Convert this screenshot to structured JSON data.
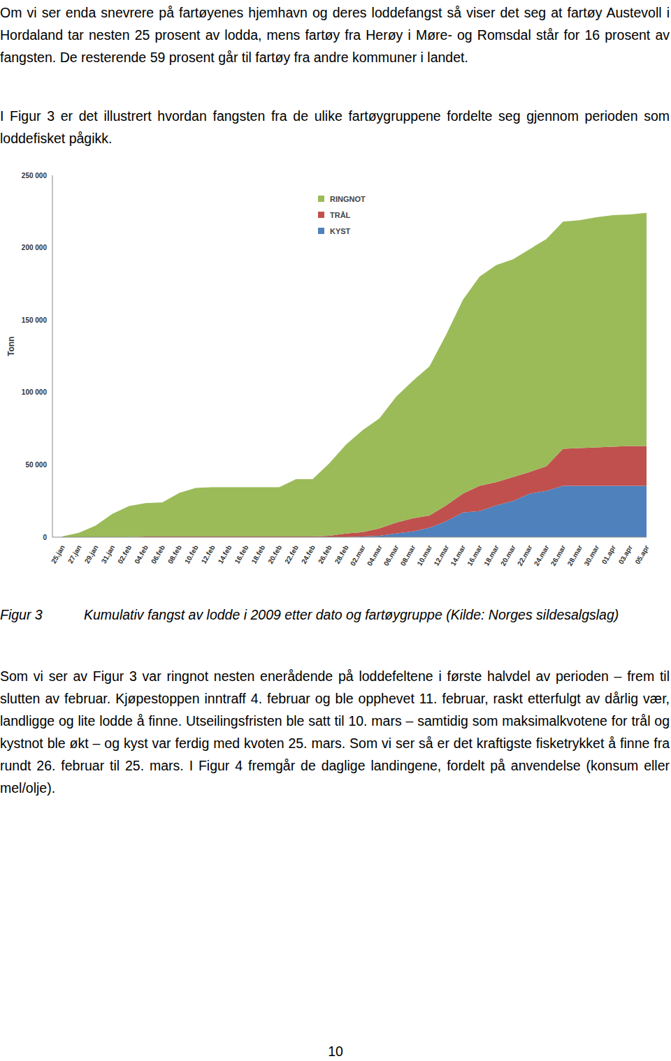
{
  "document": {
    "paragraphs_before": [
      "Om vi ser enda snevrere på fartøyenes hjemhavn og deres loddefangst så viser det seg at fartøy Austevoll i Hordaland tar nesten 25 prosent av lodda, mens fartøy fra Herøy i Møre- og Romsdal står for 16 prosent av fangsten. De resterende 59 prosent går til fartøy fra andre kommuner i landet.",
      "I Figur 3 er det illustrert hvordan fangsten fra de ulike fartøygruppene fordelte seg gjennom perioden som loddefisket pågikk."
    ],
    "figure_caption": {
      "label": "Figur 3",
      "text": "Kumulativ fangst av lodde i 2009 etter dato og fartøygruppe (Kilde: Norges sildesalgslag)"
    },
    "paragraphs_after": [
      "Som vi ser av Figur 3 var ringnot nesten enerådende på loddefeltene i første halvdel av perioden – frem til slutten av februar. Kjøpestoppen inntraff 4. februar og ble opphevet 11. februar, raskt etterfulgt av dårlig vær, landligge og lite lodde å finne. Utseilingsfristen ble satt til 10. mars – samtidig som maksimalkvotene for trål og kystnot ble økt – og kyst var ferdig med kvoten 25. mars. Som vi ser så er det kraftigste fisketrykket å finne fra rundt 26. februar til 25. mars. I Figur 4 fremgår de daglige landingene, fordelt på anvendelse (konsum eller mel/olje)."
    ],
    "page_number": "10"
  },
  "chart_data": {
    "type": "area",
    "stacked": true,
    "y_label": "Tonn",
    "legend": "top",
    "grid": false,
    "categories": [
      "25.jan",
      "27.jan",
      "29.jan",
      "31.jan",
      "02.feb",
      "04.feb",
      "06.feb",
      "08.feb",
      "10.feb",
      "12.feb",
      "14.feb",
      "16.feb",
      "18.feb",
      "20.feb",
      "22.feb",
      "24.feb",
      "26.feb",
      "28.feb",
      "02.mar",
      "04.mar",
      "06.mar",
      "08.mar",
      "10.mar",
      "12.mar",
      "14.mar",
      "16.mar",
      "18.mar",
      "20.mar",
      "22.mar",
      "24.mar",
      "26.mar",
      "28.mar",
      "30.mar",
      "01.apr",
      "03.apr",
      "05.apr"
    ],
    "series": [
      {
        "name": "RINGNOT",
        "color": "#9bbb59",
        "values": [
          500,
          3000,
          8000,
          16000,
          21500,
          23000,
          23500,
          30000,
          33500,
          34000,
          34000,
          34000,
          34000,
          34000,
          39500,
          39500,
          50000,
          61500,
          70500,
          76000,
          87000,
          95000,
          103000,
          118000,
          134000,
          144500,
          150000,
          150500,
          154000,
          157000,
          157000,
          157500,
          159000,
          160000,
          160000,
          161000
        ]
      },
      {
        "name": "TRÅL",
        "color": "#c0504d",
        "values": [
          0,
          0,
          0,
          0,
          0,
          500,
          500,
          500,
          500,
          500,
          500,
          500,
          500,
          500,
          500,
          500,
          1000,
          2500,
          3000,
          5000,
          7500,
          9000,
          8500,
          11000,
          13000,
          17500,
          16000,
          16500,
          15000,
          17000,
          25500,
          26000,
          26500,
          27000,
          27500,
          27500
        ]
      },
      {
        "name": "KYST",
        "color": "#4f81bd",
        "values": [
          0,
          0,
          0,
          0,
          0,
          0,
          0,
          0,
          0,
          0,
          0,
          0,
          0,
          0,
          0,
          0,
          0,
          0,
          500,
          1000,
          2500,
          4000,
          6500,
          11000,
          17000,
          18000,
          22000,
          25000,
          30000,
          32000,
          35500,
          35500,
          35500,
          35500,
          35500,
          35500
        ]
      }
    ],
    "ylim": [
      0,
      250000
    ],
    "yticks": [
      0,
      {
        "value": 50000,
        "label": "50 000"
      },
      {
        "value": 100000,
        "label": "100 000"
      },
      {
        "value": 150000,
        "label": "150 000"
      },
      {
        "value": 200000,
        "label": "200 000"
      },
      {
        "value": 250000,
        "label": "250 000"
      }
    ]
  }
}
